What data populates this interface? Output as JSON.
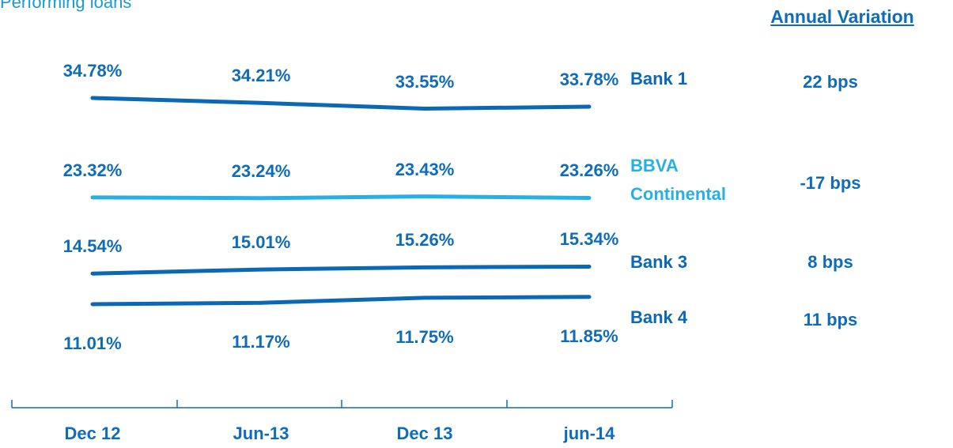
{
  "chart_data": {
    "type": "line",
    "title": "Performing loans",
    "variation_header": "Annual Variation",
    "categories": [
      "Dec 12",
      "Jun-13",
      "Dec 13",
      "jun-14"
    ],
    "series": [
      {
        "name": "Bank 1",
        "color": "#0b68b4",
        "values": [
          34.78,
          34.21,
          33.55,
          33.78
        ],
        "value_labels": [
          "34.78%",
          "34.21%",
          "33.55%",
          "33.78%"
        ],
        "variation": "22 bps"
      },
      {
        "name": "BBVA Continental",
        "color": "#27b0e6",
        "values": [
          23.32,
          23.24,
          23.43,
          23.26
        ],
        "value_labels": [
          "23.32%",
          "23.24%",
          "23.43%",
          "23.26%"
        ],
        "variation": "-17 bps"
      },
      {
        "name": "Bank 3",
        "color": "#0b68b4",
        "values": [
          14.54,
          15.01,
          15.26,
          15.34
        ],
        "value_labels": [
          "14.54%",
          "15.01%",
          "15.26%",
          "15.34%"
        ],
        "variation": "8 bps"
      },
      {
        "name": "Bank 4",
        "color": "#0b68b4",
        "values": [
          11.01,
          11.17,
          11.75,
          11.85
        ],
        "value_labels": [
          "11.01%",
          "11.17%",
          "11.75%",
          "11.85%"
        ],
        "variation": "11 bps"
      }
    ]
  }
}
